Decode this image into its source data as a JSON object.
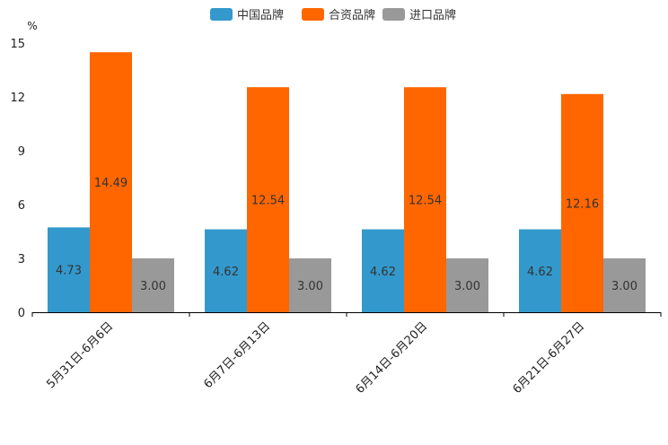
{
  "chart_data": {
    "type": "bar",
    "categories": [
      "5月31日-6月6日",
      "6月7日-6月13日",
      "6月14日-6月20日",
      "6月21日-6月27日"
    ],
    "series": [
      {
        "name": "中国品牌",
        "color": "#3399cc",
        "values": [
          4.73,
          4.62,
          4.62,
          4.62
        ],
        "labels": [
          "4.73",
          "4.62",
          "4.62",
          "4.62"
        ]
      },
      {
        "name": "合资品牌",
        "color": "#ff6600",
        "values": [
          14.49,
          12.54,
          12.54,
          12.16
        ],
        "labels": [
          "14.49",
          "12.54",
          "12.54",
          "12.16"
        ]
      },
      {
        "name": "进口品牌",
        "color": "#999999",
        "values": [
          3.0,
          3.0,
          3.0,
          3.0
        ],
        "labels": [
          "3.00",
          "3.00",
          "3.00",
          "3.00"
        ]
      }
    ],
    "unit": "%",
    "ylim": [
      0,
      15
    ],
    "yticks": [
      "0",
      "3",
      "6",
      "9",
      "12",
      "15"
    ],
    "legend_position": "top-center"
  }
}
